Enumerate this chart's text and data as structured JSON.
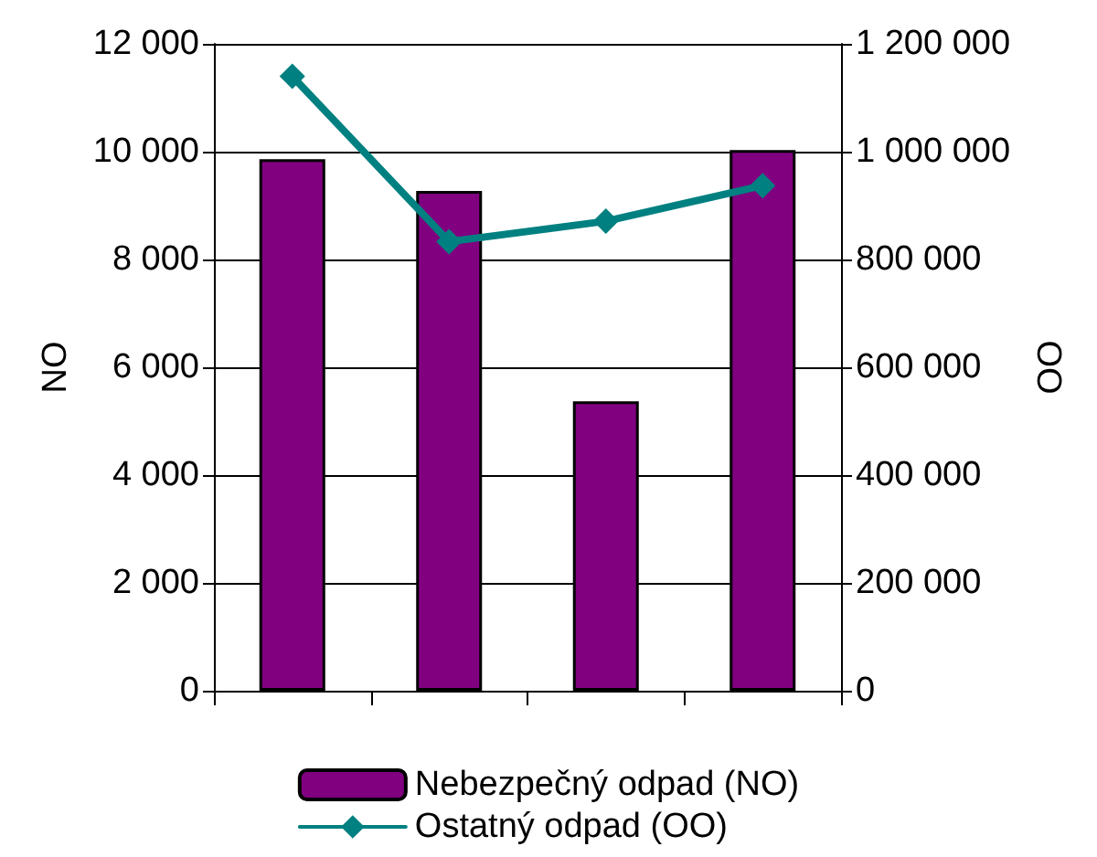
{
  "chart_data": {
    "type": "bar",
    "ylabel": "NO",
    "y2label": "OO",
    "categories": [
      null,
      null,
      null,
      null
    ],
    "series": [
      {
        "name": "Nebezpečný odpad (NO)",
        "color": "#800080",
        "values": [
          9860,
          9270,
          5370,
          10030
        ]
      },
      {
        "name": "Ostatný odpad (OO)",
        "type": "line",
        "color": "#008080",
        "axis": "y2",
        "marker": "diamond",
        "values": [
          1140000,
          833000,
          871000,
          937000
        ]
      }
    ],
    "ylim": [
      0,
      12000
    ],
    "yticks": [
      0,
      {
        "value": 2000,
        "label": "2 000"
      },
      {
        "value": 4000,
        "label": "4 000"
      },
      {
        "value": 6000,
        "label": "6 000"
      },
      {
        "value": 8000,
        "label": "8 000"
      },
      {
        "value": 10000,
        "label": "10 000"
      },
      {
        "value": 12000,
        "label": "12 000"
      }
    ],
    "y2lim": [
      0,
      1200000
    ],
    "y2ticks": [
      0,
      {
        "value": 200000,
        "label": "200 000"
      },
      {
        "value": 400000,
        "label": "400 000"
      },
      {
        "value": 600000,
        "label": "600 000"
      },
      {
        "value": 800000,
        "label": "800 000"
      },
      {
        "value": 1000000,
        "label": "1 000 000"
      },
      {
        "value": 1200000,
        "label": "1 200 000"
      }
    ],
    "grid": "y",
    "legend": "bottom"
  }
}
